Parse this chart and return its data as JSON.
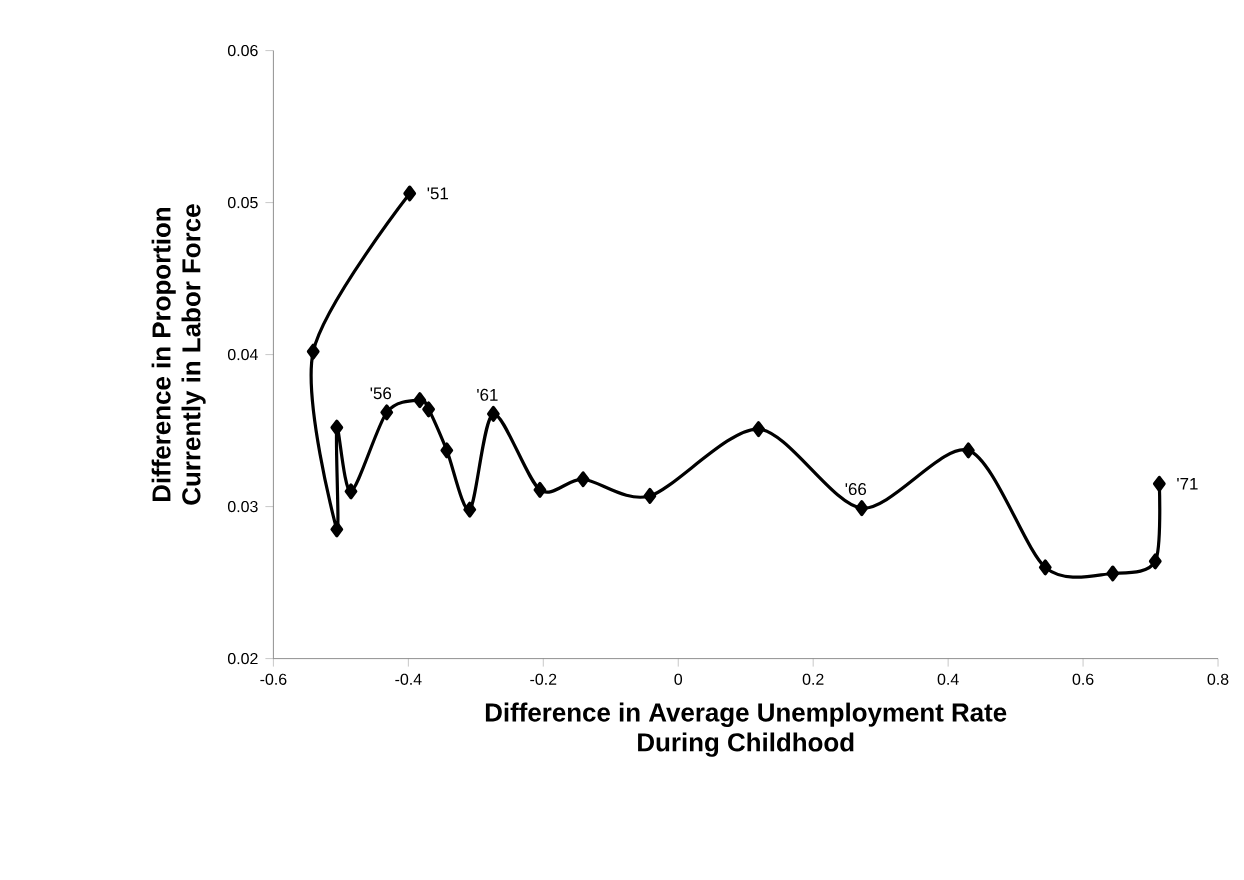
{
  "chart_data": {
    "type": "line",
    "xlabel": "Difference in Average Unemployment Rate During Childhood",
    "ylabel": "Difference in Proportion Currently in Labor Force",
    "x": [
      -0.398,
      -0.541,
      -0.506,
      -0.506,
      -0.485,
      -0.432,
      -0.383,
      -0.37,
      -0.343,
      -0.309,
      -0.274,
      -0.205,
      -0.141,
      -0.042,
      0.119,
      0.272,
      0.43,
      0.544,
      0.644,
      0.707,
      0.713
    ],
    "series": [
      {
        "color": "#000000",
        "values": [
          0.0506,
          0.0402,
          0.0285,
          0.0352,
          0.031,
          0.0362,
          0.037,
          0.0364,
          0.0337,
          0.0298,
          0.0361,
          0.0311,
          0.0318,
          0.0307,
          0.0351,
          0.0299,
          0.0337,
          0.026,
          0.0256,
          0.0264,
          0.0315
        ]
      }
    ],
    "annotations": [
      {
        "text": "'51",
        "x": -0.398,
        "y": 0.0506
      },
      {
        "text": "'56",
        "x": -0.432,
        "y": 0.0362
      },
      {
        "text": "'61",
        "x": -0.274,
        "y": 0.0361
      },
      {
        "text": "'66",
        "x": 0.272,
        "y": 0.0299
      },
      {
        "text": "'71",
        "x": 0.713,
        "y": 0.0315
      }
    ],
    "xlim": [
      -0.6,
      0.8
    ],
    "xticks": [
      -0.6,
      -0.4,
      -0.2,
      0,
      0.2,
      0.4,
      0.6,
      0.8
    ],
    "ylim": [
      0.02,
      0.06
    ],
    "yticks": [
      0.02,
      0.03,
      0.04,
      0.05,
      0.06
    ],
    "marker": "diamond",
    "line_style": "solid"
  }
}
